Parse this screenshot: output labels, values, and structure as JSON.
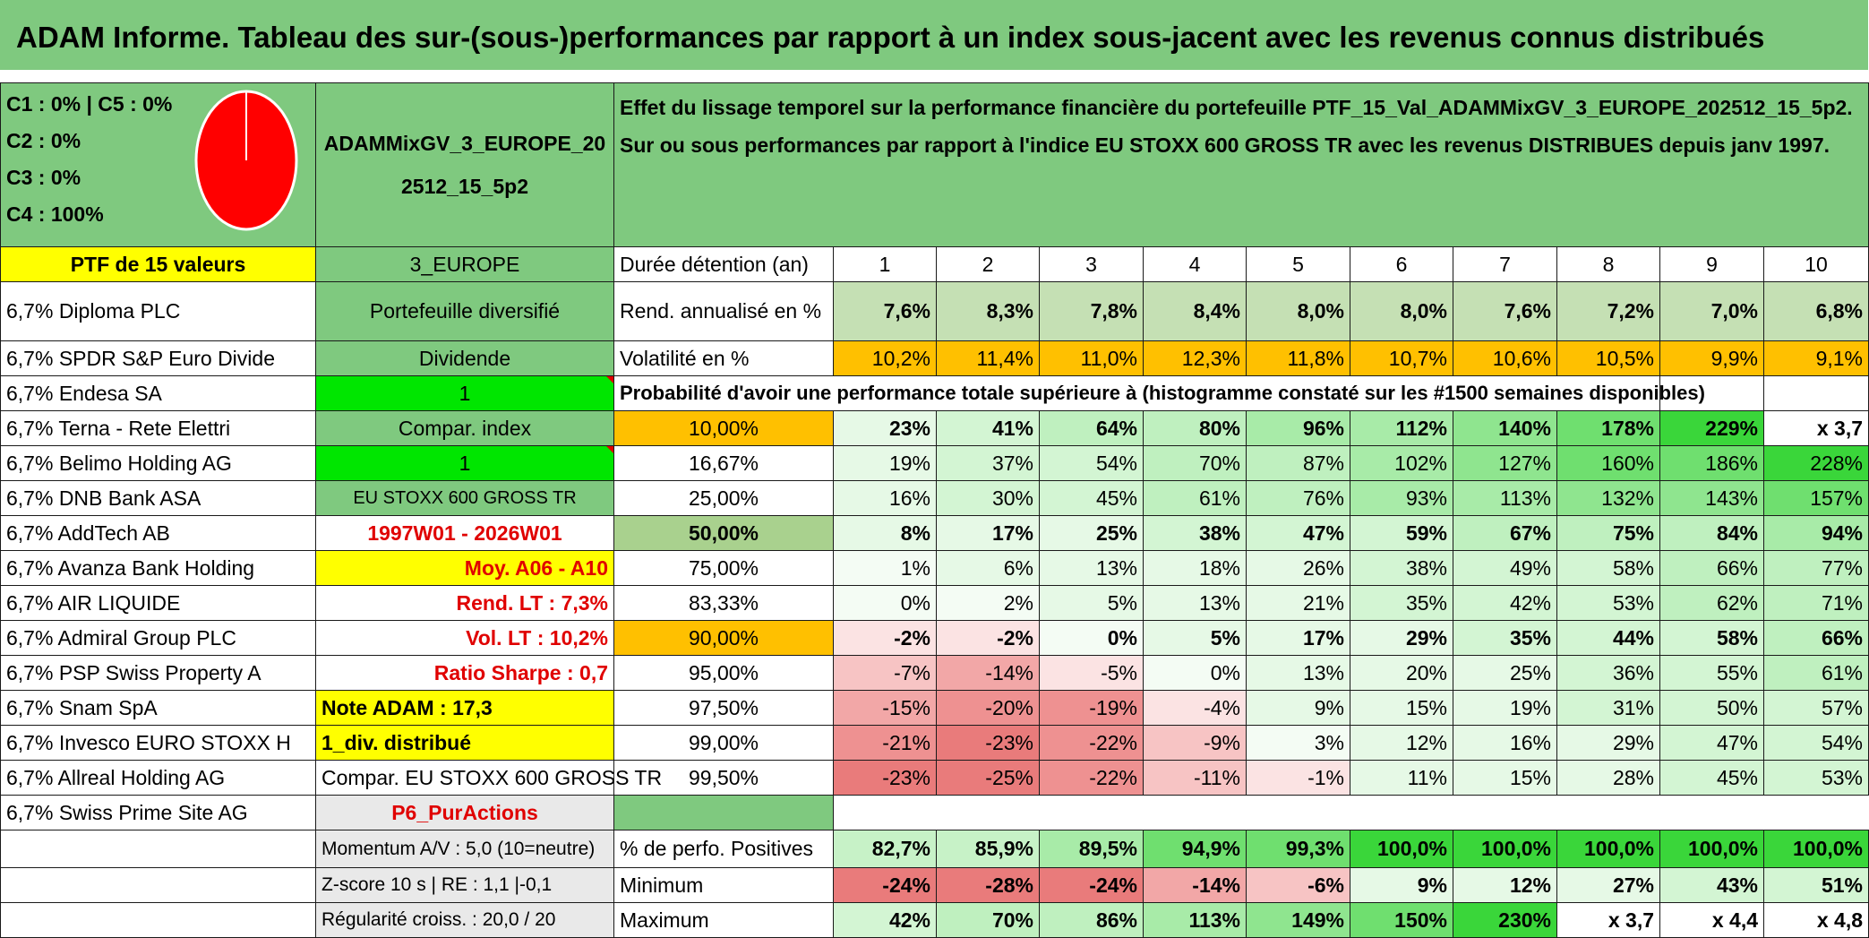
{
  "title": "ADAM Informe. Tableau des sur-(sous-)performances par rapport à un index sous-jacent avec les revenus connus distribués",
  "allocation": [
    "C1 : 0% | C5 : 0%",
    "C2 : 0%",
    "C3 : 0%",
    "C4 : 100%"
  ],
  "pie_color": "#ff0000",
  "portfolio_name": "ADAMMixGV_3_EUROPE_202512_15_5p2",
  "effect_text": "Effet du lissage temporel sur la performance financière du portefeuille PTF_15_Val_ADAMMixGV_3_EUROPE_202512_15_5p2. Sur ou sous performances par rapport à l'indice EU STOXX 600 GROSS TR avec les revenus DISTRIBUES depuis janv 1997.",
  "ptf_label": "PTF de 15 valeurs",
  "zone": "3_EUROPE",
  "holding_label": "Durée détention (an)",
  "years": [
    "1",
    "2",
    "3",
    "4",
    "5",
    "6",
    "7",
    "8",
    "9",
    "10"
  ],
  "holdings": [
    "6,7% Diploma PLC",
    "6,7% SPDR S&P Euro Divide",
    "6,7% Endesa SA",
    "6,7% Terna - Rete Elettri",
    "6,7% Belimo Holding AG",
    "6,7% DNB Bank ASA",
    "6,7% AddTech AB",
    "6,7% Avanza Bank Holding",
    "6,7% AIR LIQUIDE",
    "6,7% Admiral Group PLC",
    "6,7% PSP Swiss Property A",
    "6,7% Snam SpA",
    "6,7% Invesco EURO STOXX H",
    "6,7% Allreal Holding AG",
    "6,7% Swiss Prime Site AG"
  ],
  "info": {
    "type": "Portefeuille diversifié",
    "category": "Dividende",
    "flag1": "1",
    "compar_label": "Compar. index",
    "flag2": "1",
    "index_name": "EU STOXX 600 GROSS TR",
    "period": "1997W01 - 2026W01",
    "moy": "Moy. A06 - A10",
    "rend_lt": "Rend. LT : 7,3%",
    "vol_lt": "Vol. LT : 10,2%",
    "sharpe": "Ratio Sharpe : 0,7",
    "note": "Note ADAM : 17,3",
    "div": "1_div. distribué",
    "compar_full": "Compar. EU STOXX 600 GROSS TR",
    "strategy": "P6_PurActions",
    "momentum": "Momentum A/V : 5,0 (10=neutre)",
    "zscore": "Z-score 10 s | RE : 1,1 |-0,1",
    "regularite": "Régularité croiss. : 20,0 / 20"
  },
  "rend": {
    "label": "Rend. annualisé en %",
    "values": [
      "7,6%",
      "8,3%",
      "7,8%",
      "8,4%",
      "8,0%",
      "8,0%",
      "7,6%",
      "7,2%",
      "7,0%",
      "6,8%"
    ]
  },
  "vol": {
    "label": "Volatilité en %",
    "values": [
      "10,2%",
      "11,4%",
      "11,0%",
      "12,3%",
      "11,8%",
      "10,7%",
      "10,6%",
      "10,5%",
      "9,9%",
      "9,1%"
    ]
  },
  "proba_label": "Probabilité d'avoir une performance totale supérieure à (histogramme constaté sur les #1500 semaines disponibles)",
  "proba_rows": [
    {
      "p": "10,00%",
      "values": [
        "23%",
        "41%",
        "64%",
        "80%",
        "96%",
        "112%",
        "140%",
        "178%",
        "229%",
        "x 3,7"
      ]
    },
    {
      "p": "16,67%",
      "values": [
        "19%",
        "37%",
        "54%",
        "70%",
        "87%",
        "102%",
        "127%",
        "160%",
        "186%",
        "228%"
      ]
    },
    {
      "p": "25,00%",
      "values": [
        "16%",
        "30%",
        "45%",
        "61%",
        "76%",
        "93%",
        "113%",
        "132%",
        "143%",
        "157%"
      ]
    },
    {
      "p": "50,00%",
      "values": [
        "8%",
        "17%",
        "25%",
        "38%",
        "47%",
        "59%",
        "67%",
        "75%",
        "84%",
        "94%"
      ]
    },
    {
      "p": "75,00%",
      "values": [
        "1%",
        "6%",
        "13%",
        "18%",
        "26%",
        "38%",
        "49%",
        "58%",
        "66%",
        "77%"
      ]
    },
    {
      "p": "83,33%",
      "values": [
        "0%",
        "2%",
        "5%",
        "13%",
        "21%",
        "35%",
        "42%",
        "53%",
        "62%",
        "71%"
      ]
    },
    {
      "p": "90,00%",
      "values": [
        "-2%",
        "-2%",
        "0%",
        "5%",
        "17%",
        "29%",
        "35%",
        "44%",
        "58%",
        "66%"
      ]
    },
    {
      "p": "95,00%",
      "values": [
        "-7%",
        "-14%",
        "-5%",
        "0%",
        "13%",
        "20%",
        "25%",
        "36%",
        "55%",
        "61%"
      ]
    },
    {
      "p": "97,50%",
      "values": [
        "-15%",
        "-20%",
        "-19%",
        "-4%",
        "9%",
        "15%",
        "19%",
        "31%",
        "50%",
        "57%"
      ]
    },
    {
      "p": "99,00%",
      "values": [
        "-21%",
        "-23%",
        "-22%",
        "-9%",
        "3%",
        "12%",
        "16%",
        "29%",
        "47%",
        "54%"
      ]
    },
    {
      "p": "99,50%",
      "values": [
        "-23%",
        "-25%",
        "-22%",
        "-11%",
        "-1%",
        "11%",
        "15%",
        "28%",
        "45%",
        "53%"
      ]
    }
  ],
  "positive": {
    "label": "% de perfo. Positives",
    "values": [
      "82,7%",
      "85,9%",
      "89,5%",
      "94,9%",
      "99,3%",
      "100,0%",
      "100,0%",
      "100,0%",
      "100,0%",
      "100,0%"
    ]
  },
  "minimum": {
    "label": "Minimum",
    "values": [
      "-24%",
      "-28%",
      "-24%",
      "-14%",
      "-6%",
      "9%",
      "12%",
      "27%",
      "43%",
      "51%"
    ]
  },
  "maximum": {
    "label": "Maximum",
    "values": [
      "42%",
      "70%",
      "86%",
      "113%",
      "149%",
      "150%",
      "230%",
      "x 3,7",
      "x 4,4",
      "x 4,8"
    ]
  }
}
